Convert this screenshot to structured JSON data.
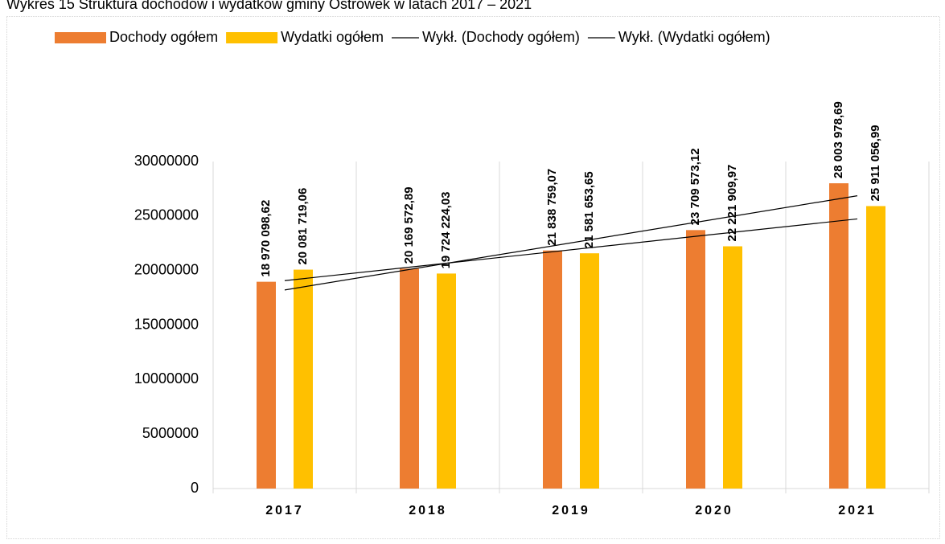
{
  "chart_data": {
    "type": "bar",
    "title": "Wykres 15 Struktura dochodów i wydatków gminy Ostrówek w latach 2017 – 2021",
    "categories": [
      "2017",
      "2018",
      "2019",
      "2020",
      "2021"
    ],
    "series": [
      {
        "name": "Dochody ogółem",
        "color": "#ed7d31",
        "values": [
          18970098.62,
          20169572.89,
          21838759.07,
          23709573.12,
          28003978.69
        ],
        "value_labels": [
          "18 970 098,62",
          "20 169 572,89",
          "21 838 759,07",
          "23 709 573,12",
          "28 003 978,69"
        ]
      },
      {
        "name": "Wydatki ogółem",
        "color": "#ffc000",
        "values": [
          20081719.06,
          19724224.03,
          21581653.65,
          22221909.97,
          25911056.99
        ],
        "value_labels": [
          "20 081 719,06",
          "19 724 224,03",
          "21 581 653,65",
          "22 221 909,97",
          "25 911 056,99"
        ]
      }
    ],
    "trendlines": [
      {
        "name": "Wykł. (Dochody ogółem)",
        "series": 0,
        "color": "#000000"
      },
      {
        "name": "Wykł. (Wydatki ogółem)",
        "series": 1,
        "color": "#000000"
      }
    ],
    "ylim": [
      0,
      30000000
    ],
    "yticks": [
      0,
      5000000,
      10000000,
      15000000,
      20000000,
      25000000,
      30000000
    ],
    "grid": true
  }
}
